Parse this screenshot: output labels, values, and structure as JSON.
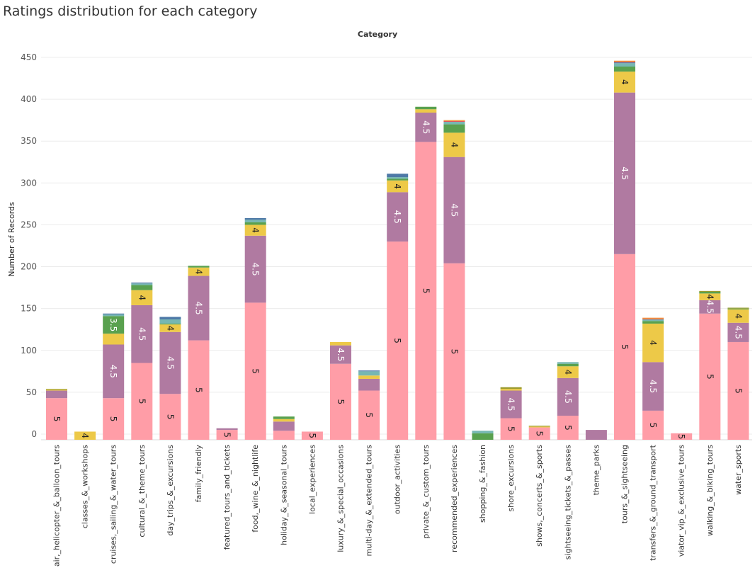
{
  "title": "Ratings distribution for each category",
  "header_label": "Category",
  "chart_data": {
    "type": "bar",
    "stacked": true,
    "ylabel": "Number of Records",
    "ylim": [
      0,
      470
    ],
    "yticks": [
      0,
      50,
      100,
      150,
      200,
      250,
      300,
      350,
      400,
      450
    ],
    "grid": true,
    "colors": {
      "5": "#FF9DA7",
      "4.5": "#B07AA1",
      "4": "#EDC948",
      "3.5": "#59A14F",
      "3": "#76B7B2",
      "2.5": "#4E79A7",
      "2": "#E15759",
      "1": "#F28E2B",
      "other": "#9C9C2E"
    },
    "label_colors": {
      "5": "#222222",
      "4.5": "#ffffff",
      "4": "#222222",
      "3.5": "#ffffff"
    },
    "stack_order": [
      "5",
      "4.5",
      "4",
      "3.5",
      "3",
      "2.5",
      "2",
      "1",
      "other"
    ],
    "categories": [
      {
        "name": "air,_helicopter_&_balloon_tours",
        "segments": {
          "5": 43,
          "4.5": 9,
          "4": 1,
          "other": 1
        },
        "labels": {
          "5": "5"
        }
      },
      {
        "name": "classes_&_workshops",
        "segments": {
          "4": 3
        },
        "labels": {
          "4": "4"
        }
      },
      {
        "name": "cruises,_sailing_&_water_tours",
        "segments": {
          "5": 43,
          "4.5": 64,
          "4": 13,
          "3.5": 21,
          "3": 2,
          "2.5": 1
        },
        "labels": {
          "5": "5",
          "4.5": "4.5",
          "3.5": "3.5"
        }
      },
      {
        "name": "cultural_&_theme_tours",
        "segments": {
          "5": 85,
          "4.5": 69,
          "4": 18,
          "3.5": 6,
          "3": 2,
          "2.5": 1
        },
        "labels": {
          "5": "5",
          "4.5": "4.5",
          "4": "4"
        }
      },
      {
        "name": "day_trips_&_excursions",
        "segments": {
          "5": 48,
          "4.5": 74,
          "4": 9,
          "3": 5,
          "3.5": 1,
          "2.5": 3
        },
        "labels": {
          "5": "5",
          "4.5": "4.5",
          "4": "4"
        }
      },
      {
        "name": "family_friendly",
        "segments": {
          "5": 112,
          "4.5": 77,
          "4": 10,
          "3.5": 2
        },
        "labels": {
          "5": "5",
          "4.5": "4.5",
          "4": "4"
        }
      },
      {
        "name": "featured_tours_and_tickets",
        "segments": {
          "5": 5,
          "4.5": 2
        },
        "labels": {
          "5": "5"
        }
      },
      {
        "name": "food,_wine_&_nightlife",
        "segments": {
          "5": 157,
          "4.5": 80,
          "4": 13,
          "3.5": 3,
          "3": 3,
          "2.5": 2
        },
        "labels": {
          "5": "5",
          "4.5": "4.5",
          "4": "4"
        }
      },
      {
        "name": "holiday_&_seasonal_tours",
        "segments": {
          "5": 4,
          "4.5": 11,
          "4": 3,
          "3.5": 3
        },
        "labels": {}
      },
      {
        "name": "local_experiences",
        "segments": {
          "5": 3
        },
        "labels": {
          "5": "5"
        }
      },
      {
        "name": "luxury_&_special_occasions",
        "segments": {
          "5": 84,
          "4.5": 22,
          "4": 4
        },
        "labels": {
          "5": "5",
          "4.5": "4.5"
        }
      },
      {
        "name": "multi-day_&_extended_tours",
        "segments": {
          "5": 52,
          "4.5": 14,
          "4": 4,
          "3": 5,
          "2.5": 1
        },
        "labels": {
          "5": "5"
        }
      },
      {
        "name": "outdoor_activities",
        "segments": {
          "5": 230,
          "4.5": 59,
          "4": 14,
          "3.5": 2,
          "3": 2,
          "2.5": 4
        },
        "labels": {
          "5": "5",
          "4.5": "4.5",
          "4": "4"
        }
      },
      {
        "name": "private_&_custom_tours",
        "segments": {
          "5": 349,
          "4.5": 35,
          "4": 4,
          "3.5": 3
        },
        "labels": {
          "5": "5",
          "4.5": "4.5"
        }
      },
      {
        "name": "recommended_experiences",
        "segments": {
          "5": 204,
          "4.5": 127,
          "4": 29,
          "3.5": 10,
          "3": 3,
          "2": 1,
          "1": 1
        },
        "labels": {
          "5": "5",
          "4.5": "4.5",
          "4": "4"
        }
      },
      {
        "name": "shopping_&_fashion",
        "segments": {
          "3": 3,
          "3.5": 1
        },
        "labels": {}
      },
      {
        "name": "shore_excursions",
        "segments": {
          "5": 19,
          "4.5": 33,
          "4": 2,
          "other": 2
        },
        "labels": {
          "5": "5",
          "4.5": "4.5"
        }
      },
      {
        "name": "shows,_concerts_&_sports",
        "segments": {
          "5": 8,
          "4": 1,
          "other": 1
        },
        "labels": {
          "5": "5"
        }
      },
      {
        "name": "sightseeing_tickets_&_passes",
        "segments": {
          "5": 22,
          "4.5": 45,
          "4": 14,
          "3.5": 3,
          "3": 2
        },
        "labels": {
          "5": "5",
          "4.5": "4.5",
          "4": "4"
        }
      },
      {
        "name": "theme_parks",
        "segments": {
          "4.5": 5
        },
        "labels": {}
      },
      {
        "name": "tours_&_sightseeing",
        "segments": {
          "5": 215,
          "4.5": 193,
          "4": 25,
          "3.5": 6,
          "3": 4,
          "2.5": 1,
          "2": 1,
          "1": 1
        },
        "labels": {
          "5": "5",
          "4.5": "4.5",
          "4": "4"
        }
      },
      {
        "name": "transfers_&_ground_transport",
        "segments": {
          "5": 28,
          "4.5": 58,
          "4": 46,
          "3.5": 3,
          "3": 2,
          "2": 1,
          "1": 1
        },
        "labels": {
          "5": "5",
          "4.5": "4.5",
          "4": "4"
        }
      },
      {
        "name": "viator_vip_&_exclusive_tours",
        "segments": {
          "5": 1
        },
        "labels": {
          "5": "5"
        }
      },
      {
        "name": "walking_&_biking_tours",
        "segments": {
          "5": 144,
          "4.5": 16,
          "4": 8,
          "3.5": 2,
          "other": 1
        },
        "labels": {
          "5": "5",
          "4.5": "4.5",
          "4": "4"
        }
      },
      {
        "name": "water_sports",
        "segments": {
          "5": 110,
          "4.5": 23,
          "4": 16,
          "3.5": 1,
          "other": 1
        },
        "labels": {
          "5": "5",
          "4.5": "4.5",
          "4": "4"
        }
      }
    ]
  }
}
